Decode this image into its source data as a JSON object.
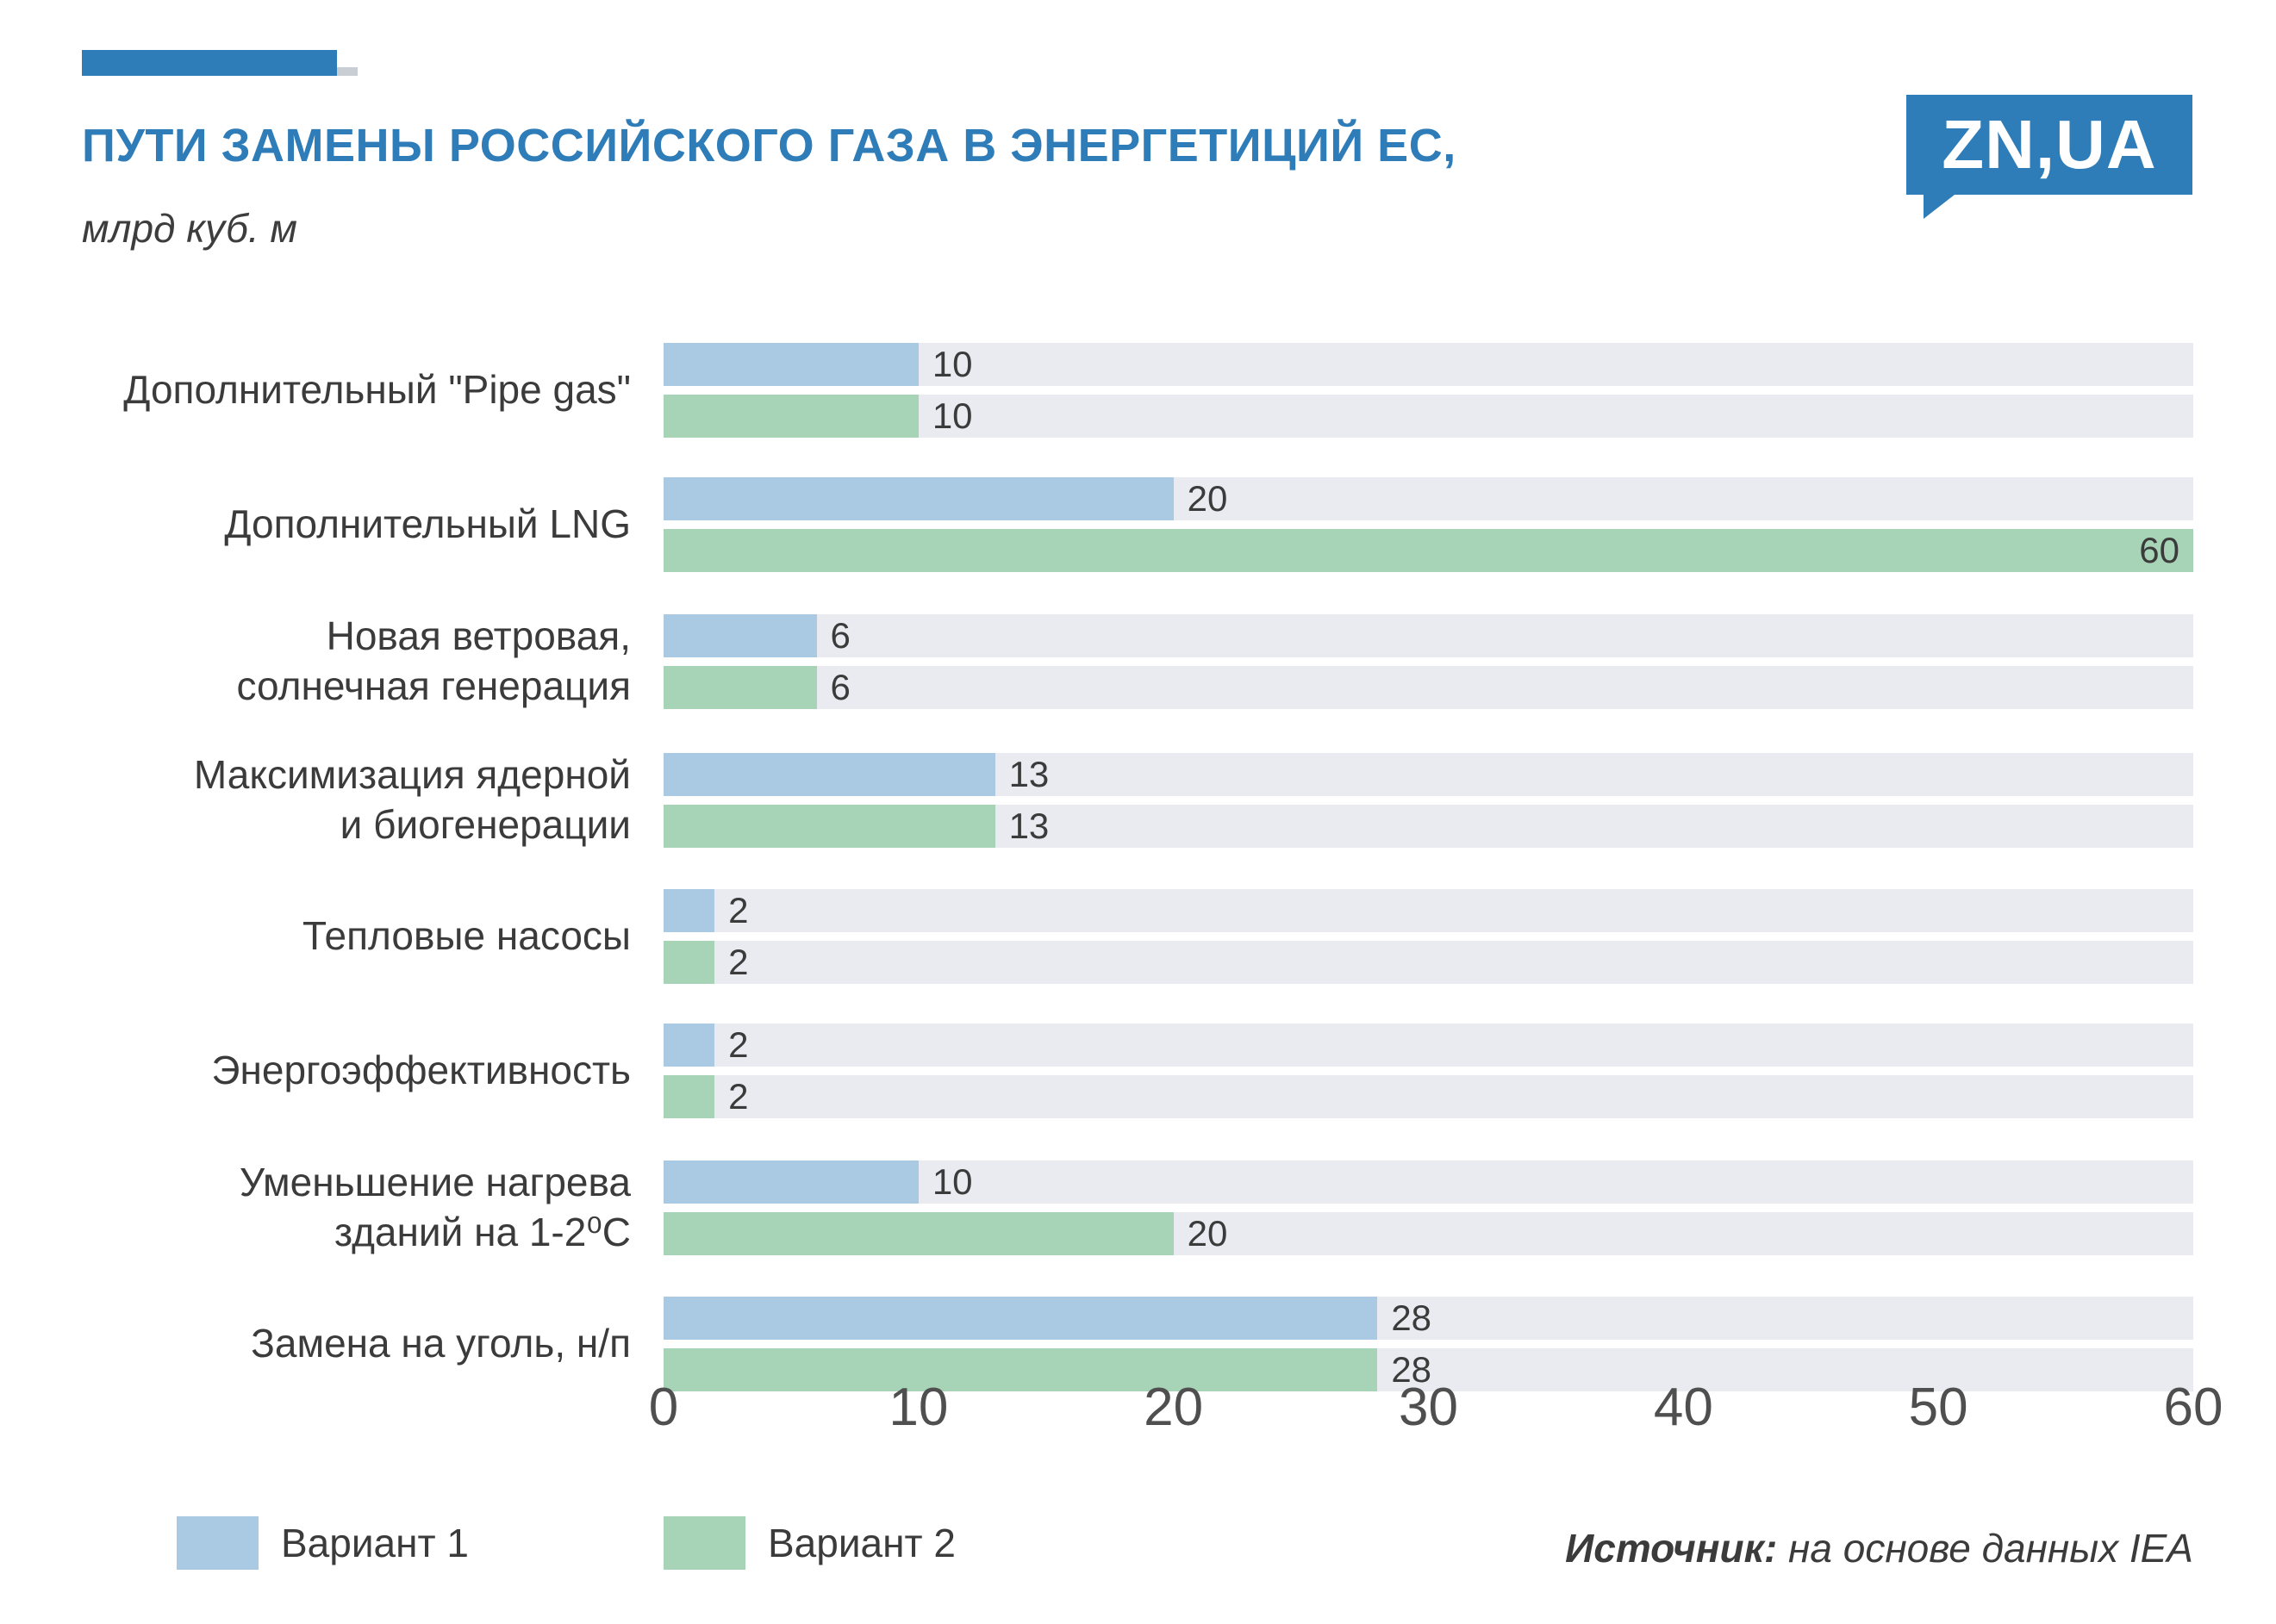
{
  "header": {
    "title": "ПУТИ ЗАМЕНЫ РОССИЙСКОГО ГАЗА В ЭНЕРГЕТИЦИЙ ЕС,",
    "subtitle": "млрд куб. м",
    "logo": "ZN,UA"
  },
  "colors": {
    "accent_blue": "#2e7cb8",
    "variant1": "#aac9e2",
    "variant2": "#a7d3b7",
    "track_gray": "#e9ebf1",
    "text_dark": "#3b3b3b"
  },
  "chart_data": {
    "type": "bar",
    "orientation": "horizontal",
    "title": "ПУТИ ЗАМЕНЫ РОССИЙСКОГО ГАЗА В ЭНЕРГЕТИЦИЙ ЕС, млрд куб. м",
    "categories": [
      "Дополнительный \"Pipe gas\"",
      "Дополнительный LNG",
      "Новая ветровая,\nсолнечная генерация",
      "Максимизация ядерной\nи биогенерации",
      "Тепловые насосы",
      "Энергоэффективность",
      "Уменьшение нагрева\nзданий на 1-2⁰С",
      "Замена на уголь, н/п"
    ],
    "series": [
      {
        "name": "Вариант 1",
        "color": "#aac9e2",
        "values": [
          10,
          20,
          6,
          13,
          2,
          2,
          10,
          28
        ]
      },
      {
        "name": "Вариант 2",
        "color": "#a7d3b7",
        "values": [
          10,
          60,
          6,
          13,
          2,
          2,
          20,
          28
        ]
      }
    ],
    "xlim": [
      0,
      60
    ],
    "xticks": [
      0,
      10,
      20,
      30,
      40,
      50,
      60
    ],
    "xlabel": "",
    "ylabel": "",
    "grid": false,
    "legend_position": "bottom"
  },
  "footer": {
    "source_label": "Источник:",
    "source_text": " на основе данных IEA"
  }
}
